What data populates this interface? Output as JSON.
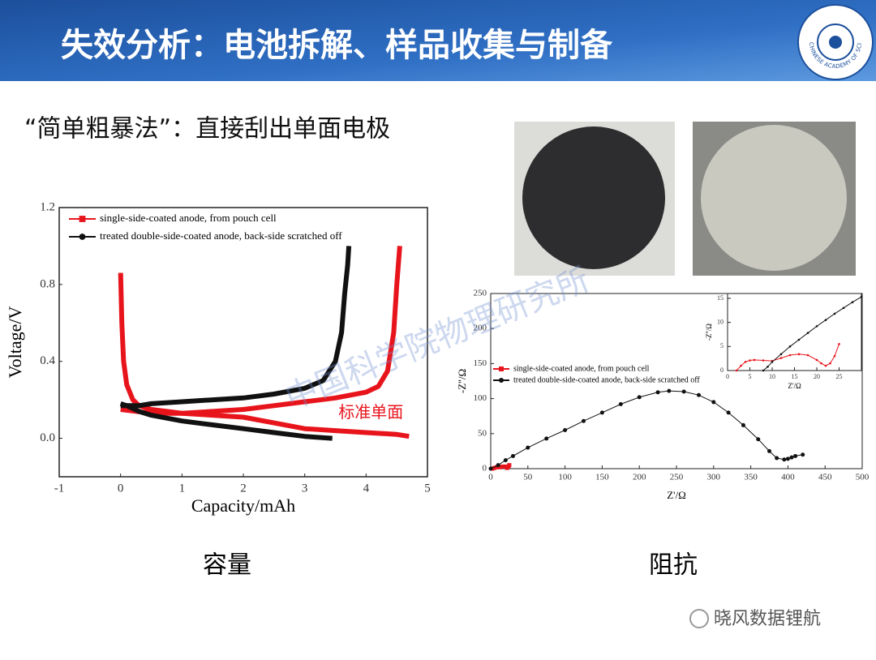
{
  "header": {
    "title": "失效分析：电池拆解、样品收集与制备",
    "logo_text": "CHINESE ACADEMY OF SCIENCES"
  },
  "subtitle": "“简单粗暴法”：直接刮出单面电极",
  "watermark": "中国科学院物理研究所",
  "capacity_chart": {
    "type": "line",
    "xlabel": "Capacity/mAh",
    "ylabel": "Voltage/V",
    "xlim": [
      -1,
      5
    ],
    "xticks": [
      -1,
      0,
      1,
      2,
      3,
      4,
      5
    ],
    "ylim": [
      -0.2,
      1.2
    ],
    "yticks": [
      {
        "value": 0,
        "label": "0.0"
      },
      0.4,
      0.8,
      1.2
    ],
    "annotation": "标准单面",
    "series": [
      {
        "name": "single-side-coated anode, from pouch cell",
        "color": "#e8141c",
        "marker": "square",
        "curves": [
          {
            "x": [
              0,
              0.02,
              0.05,
              0.1,
              0.2,
              0.3,
              0.5,
              1,
              1.5,
              2,
              2.5,
              3,
              3.5,
              4,
              4.5,
              4.7
            ],
            "y": [
              0.86,
              0.6,
              0.4,
              0.28,
              0.2,
              0.17,
              0.15,
              0.13,
              0.12,
              0.11,
              0.08,
              0.05,
              0.04,
              0.03,
              0.02,
              0.01
            ]
          },
          {
            "x": [
              0,
              0.5,
              1,
              1.5,
              2,
              2.5,
              3,
              3.5,
              4,
              4.2,
              4.35,
              4.45,
              4.5,
              4.55
            ],
            "y": [
              0.15,
              0.13,
              0.13,
              0.14,
              0.15,
              0.17,
              0.19,
              0.21,
              0.24,
              0.27,
              0.35,
              0.55,
              0.8,
              1.0
            ]
          }
        ]
      },
      {
        "name": "treated double-side-coated anode, back-side scratched off",
        "color": "#111111",
        "marker": "circle",
        "curves": [
          {
            "x": [
              0,
              0.1,
              0.3,
              0.5,
              1,
              1.5,
              2,
              2.5,
              3,
              3.45
            ],
            "y": [
              0.18,
              0.17,
              0.14,
              0.12,
              0.09,
              0.07,
              0.05,
              0.03,
              0.01,
              0.0
            ]
          },
          {
            "x": [
              0,
              0.3,
              0.5,
              1,
              1.5,
              2,
              2.5,
              3,
              3.3,
              3.5,
              3.6,
              3.65,
              3.7,
              3.72
            ],
            "y": [
              0.17,
              0.17,
              0.18,
              0.19,
              0.2,
              0.21,
              0.23,
              0.26,
              0.3,
              0.4,
              0.55,
              0.75,
              0.9,
              1.0
            ]
          }
        ]
      }
    ]
  },
  "impedance_chart": {
    "type": "scatter",
    "xlabel": "Z'/Ω",
    "ylabel": "-Z''/Ω",
    "xlim": [
      0,
      500
    ],
    "xticks": [
      0,
      50,
      100,
      150,
      200,
      250,
      300,
      350,
      400,
      450,
      500
    ],
    "ylim": [
      0,
      250
    ],
    "yticks": [
      0,
      50,
      100,
      150,
      200,
      250
    ],
    "series": [
      {
        "name": "single-side-coated anode, from pouch cell",
        "color": "#e8141c",
        "marker": "square",
        "x": [
          2,
          5,
          8,
          12,
          16,
          20,
          22,
          24,
          25
        ],
        "y": [
          0,
          1,
          2,
          2,
          3,
          3,
          1,
          3,
          5
        ]
      },
      {
        "name": "treated double-side-coated anode, back-side scratched off",
        "color": "#111111",
        "marker": "circle",
        "x": [
          0,
          10,
          20,
          30,
          50,
          75,
          100,
          125,
          150,
          175,
          200,
          225,
          240,
          260,
          280,
          300,
          320,
          340,
          360,
          375,
          385,
          395,
          400,
          405,
          410,
          420
        ],
        "y": [
          0,
          5,
          12,
          18,
          30,
          43,
          55,
          68,
          80,
          92,
          102,
          109,
          111,
          110,
          105,
          95,
          80,
          62,
          42,
          25,
          15,
          13,
          14,
          16,
          18,
          20
        ]
      }
    ],
    "inset": {
      "xlabel": "Z'/Ω",
      "ylabel": "-Z''/Ω",
      "xlim": [
        0,
        30
      ],
      "xticks": [
        0,
        5,
        10,
        15,
        20,
        25
      ],
      "ylim": [
        0,
        16
      ],
      "yticks": [
        0,
        5,
        10,
        15
      ],
      "series": [
        {
          "color": "#e8141c",
          "x": [
            2,
            3,
            4,
            5,
            6,
            8,
            10,
            12,
            14,
            16,
            18,
            20,
            21,
            22,
            23,
            24,
            25
          ],
          "y": [
            0,
            1,
            1.8,
            2.1,
            2.2,
            2.1,
            2,
            2.6,
            3.2,
            3.4,
            3.2,
            2.2,
            1.5,
            1,
            1.5,
            3,
            5.5
          ]
        },
        {
          "color": "#111111",
          "x": [
            8,
            9,
            10,
            12,
            14,
            16,
            18,
            20,
            22,
            24,
            26,
            28,
            30
          ],
          "y": [
            0,
            0.8,
            1.8,
            3.4,
            5,
            6.4,
            7.8,
            9.2,
            10.5,
            11.8,
            13,
            14.2,
            15.3
          ]
        }
      ]
    }
  },
  "captions": [
    "容量",
    "阻抗"
  ],
  "footer": "晓风数据锂航"
}
